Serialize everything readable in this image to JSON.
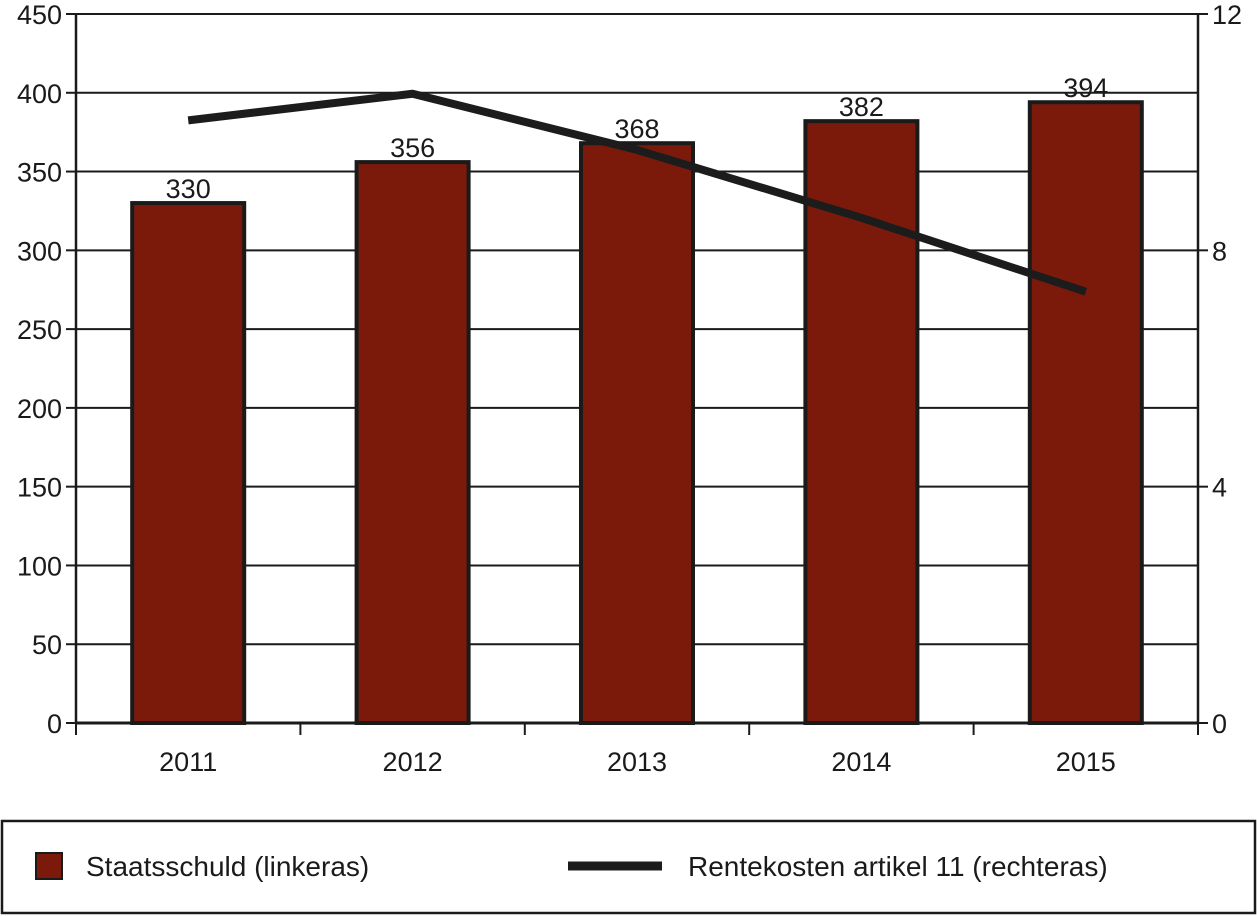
{
  "chart_data": {
    "type": "bar",
    "categories": [
      "2011",
      "2012",
      "2013",
      "2014",
      "2015"
    ],
    "series": [
      {
        "name": "Staatsschuld (linkeras)",
        "type": "bar",
        "axis": "left",
        "values": [
          330,
          356,
          368,
          382,
          394
        ],
        "data_labels": [
          "330",
          "356",
          "368",
          "382",
          "394"
        ],
        "color": "#7b1a0a"
      },
      {
        "name": "Rentekosten artikel 11 (rechteras)",
        "type": "line",
        "axis": "right",
        "values": [
          10.2,
          10.65,
          9.7,
          8.55,
          7.3
        ],
        "color": "#1c1c1c"
      }
    ],
    "y_left": {
      "ylim": [
        0,
        450
      ],
      "ticks": [
        0,
        50,
        100,
        150,
        200,
        250,
        300,
        350,
        400,
        450
      ],
      "tick_labels": [
        "0",
        "50",
        "100",
        "150",
        "200",
        "250",
        "300",
        "350",
        "400",
        "450"
      ]
    },
    "y_right": {
      "ylim": [
        0,
        12
      ],
      "ticks": [
        0,
        4,
        8,
        12
      ],
      "tick_labels": [
        "0",
        "4",
        "8",
        "12"
      ]
    },
    "grid": true,
    "legend_position": "bottom"
  }
}
